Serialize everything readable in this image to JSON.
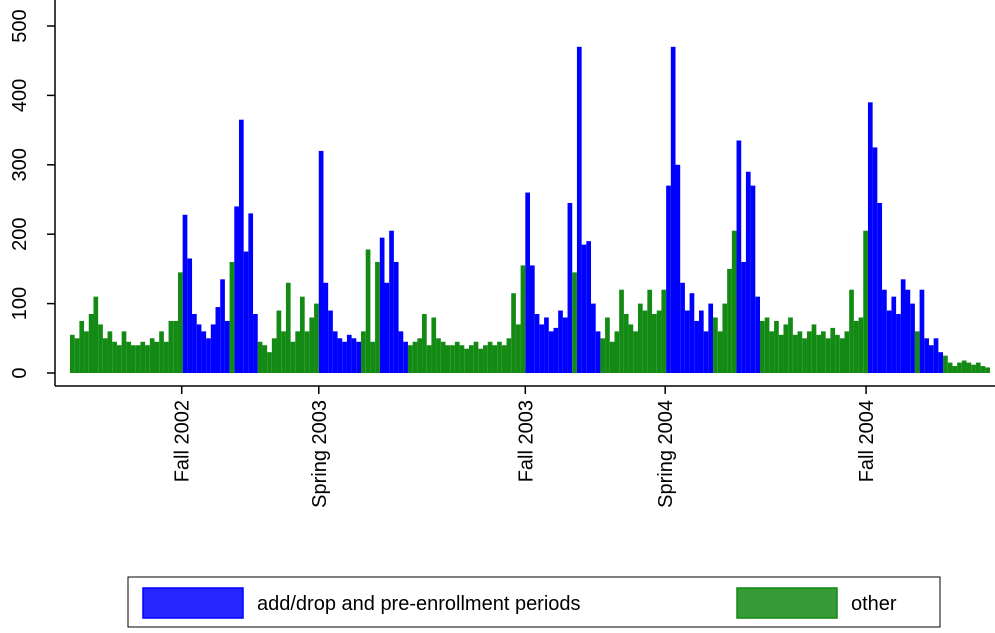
{
  "chart_data": {
    "type": "bar",
    "xlim": [
      0,
      980
    ],
    "xticks": [
      {
        "value": 119,
        "label": "Fall 2002"
      },
      {
        "value": 265,
        "label": "Spring 2003"
      },
      {
        "value": 485,
        "label": "Fall 2003"
      },
      {
        "value": 634,
        "label": "Spring 2004"
      },
      {
        "value": 848,
        "label": "Fall 2004"
      }
    ],
    "ylim": [
      0,
      500
    ],
    "yticks": [
      0,
      100,
      200,
      300,
      400,
      500
    ],
    "legend": "bottom",
    "series": [
      {
        "name": "add/drop and pre-enrollment periods",
        "color": "#0000ff",
        "x": [
          120,
          125,
          130,
          135,
          140,
          145,
          150,
          155,
          160,
          165,
          175,
          180,
          185,
          190,
          195,
          265,
          270,
          275,
          280,
          285,
          290,
          295,
          300,
          305,
          330,
          335,
          340,
          345,
          350,
          355,
          485,
          490,
          495,
          500,
          505,
          510,
          515,
          520,
          525,
          530,
          540,
          545,
          550,
          555,
          560,
          635,
          640,
          645,
          650,
          655,
          660,
          665,
          670,
          675,
          680,
          710,
          715,
          720,
          725,
          730,
          850,
          855,
          860,
          865,
          870,
          875,
          880,
          885,
          890,
          895,
          905,
          910,
          915,
          920,
          925
        ],
        "values": [
          228,
          165,
          85,
          70,
          60,
          50,
          70,
          95,
          135,
          75,
          240,
          365,
          175,
          230,
          85,
          320,
          130,
          90,
          60,
          50,
          45,
          55,
          50,
          45,
          195,
          130,
          205,
          160,
          60,
          45,
          260,
          155,
          85,
          70,
          80,
          60,
          65,
          90,
          80,
          245,
          470,
          185,
          190,
          100,
          60,
          270,
          470,
          300,
          130,
          90,
          115,
          75,
          90,
          60,
          100,
          335,
          160,
          290,
          270,
          110,
          390,
          325,
          245,
          120,
          90,
          110,
          85,
          135,
          120,
          100,
          120,
          50,
          40,
          50,
          30
        ]
      },
      {
        "name": "other",
        "color": "#138a13",
        "x": [
          0,
          5,
          10,
          15,
          20,
          25,
          30,
          35,
          40,
          45,
          50,
          55,
          60,
          65,
          70,
          75,
          80,
          85,
          90,
          95,
          100,
          105,
          110,
          115,
          170,
          200,
          205,
          210,
          215,
          220,
          225,
          230,
          235,
          240,
          245,
          250,
          255,
          260,
          310,
          315,
          320,
          325,
          360,
          365,
          370,
          375,
          380,
          385,
          390,
          395,
          400,
          405,
          410,
          415,
          420,
          425,
          430,
          435,
          440,
          445,
          450,
          455,
          460,
          465,
          470,
          475,
          480,
          535,
          565,
          570,
          575,
          580,
          585,
          590,
          595,
          600,
          605,
          610,
          615,
          620,
          625,
          630,
          685,
          690,
          695,
          700,
          705,
          735,
          740,
          745,
          750,
          755,
          760,
          765,
          770,
          775,
          780,
          785,
          790,
          795,
          800,
          805,
          810,
          815,
          820,
          825,
          830,
          835,
          840,
          845,
          900,
          930,
          935,
          940,
          945,
          950,
          955,
          960,
          965,
          970,
          975
        ],
        "values": [
          55,
          50,
          75,
          60,
          85,
          110,
          70,
          50,
          60,
          45,
          40,
          60,
          45,
          40,
          40,
          45,
          40,
          50,
          45,
          60,
          45,
          75,
          75,
          145,
          160,
          45,
          40,
          30,
          50,
          90,
          60,
          130,
          45,
          60,
          110,
          60,
          80,
          100,
          60,
          178,
          45,
          160,
          40,
          45,
          50,
          85,
          40,
          80,
          50,
          45,
          40,
          40,
          45,
          40,
          35,
          40,
          45,
          35,
          40,
          45,
          40,
          45,
          40,
          50,
          115,
          70,
          155,
          145,
          50,
          80,
          45,
          60,
          120,
          85,
          70,
          60,
          100,
          90,
          120,
          85,
          90,
          120,
          80,
          60,
          100,
          150,
          205,
          75,
          80,
          60,
          75,
          55,
          70,
          80,
          55,
          60,
          50,
          60,
          70,
          55,
          60,
          50,
          65,
          55,
          50,
          60,
          120,
          75,
          80,
          205,
          60,
          25,
          15,
          10,
          15,
          18,
          15,
          12,
          15,
          10,
          8
        ]
      }
    ]
  }
}
